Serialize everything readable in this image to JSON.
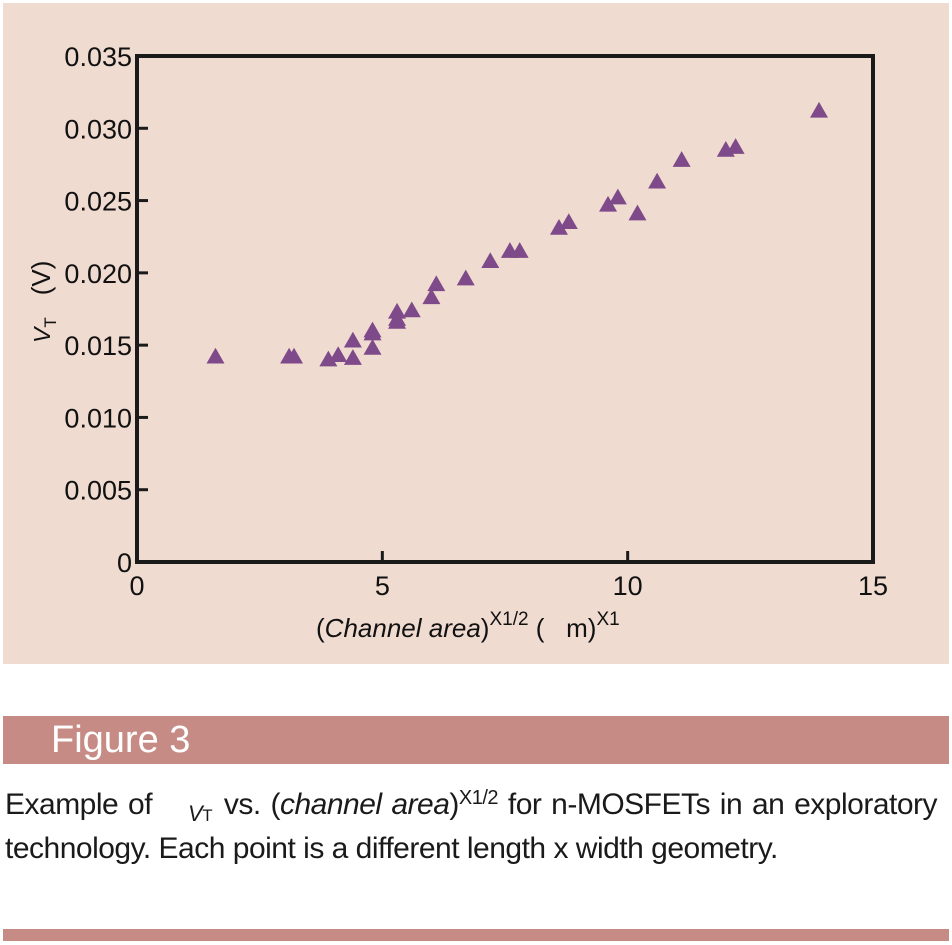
{
  "colors": {
    "panel_bg": "#f0dbd1",
    "figure_bar": "#c78b86",
    "marker": "#7e4a8a",
    "axis": "#1a1a1a"
  },
  "chart_data": {
    "type": "scatter",
    "marker": "triangle-up",
    "xlim": [
      0,
      15
    ],
    "ylim": [
      0,
      0.035
    ],
    "x_ticks": [
      "0",
      "5",
      "10",
      "15"
    ],
    "y_ticks": [
      "0",
      "0.005",
      "0.010",
      "0.015",
      "0.020",
      "0.025",
      "0.030",
      "0.035"
    ],
    "xlabel": {
      "open": "(",
      "italic": "Channel area",
      "close": ")",
      "exp1": "X1/2",
      "unit": " (   m)",
      "exp2": "X1"
    },
    "ylabel": {
      "symbol": "V",
      "sub": "T",
      "unit": "(V)"
    },
    "points": [
      {
        "x": 1.6,
        "y": 0.0142
      },
      {
        "x": 3.1,
        "y": 0.0142
      },
      {
        "x": 3.2,
        "y": 0.0142
      },
      {
        "x": 3.9,
        "y": 0.014
      },
      {
        "x": 4.1,
        "y": 0.0143
      },
      {
        "x": 4.4,
        "y": 0.0141
      },
      {
        "x": 4.4,
        "y": 0.0153
      },
      {
        "x": 4.8,
        "y": 0.0148
      },
      {
        "x": 4.8,
        "y": 0.0158
      },
      {
        "x": 4.8,
        "y": 0.016
      },
      {
        "x": 5.3,
        "y": 0.0166
      },
      {
        "x": 5.3,
        "y": 0.0168
      },
      {
        "x": 5.3,
        "y": 0.0173
      },
      {
        "x": 5.6,
        "y": 0.0174
      },
      {
        "x": 6.0,
        "y": 0.0183
      },
      {
        "x": 6.1,
        "y": 0.0192
      },
      {
        "x": 6.7,
        "y": 0.0196
      },
      {
        "x": 7.2,
        "y": 0.0208
      },
      {
        "x": 7.6,
        "y": 0.0215
      },
      {
        "x": 7.8,
        "y": 0.0215
      },
      {
        "x": 8.6,
        "y": 0.0231
      },
      {
        "x": 8.8,
        "y": 0.0235
      },
      {
        "x": 9.6,
        "y": 0.0247
      },
      {
        "x": 9.8,
        "y": 0.0252
      },
      {
        "x": 10.2,
        "y": 0.0241
      },
      {
        "x": 10.6,
        "y": 0.0263
      },
      {
        "x": 11.1,
        "y": 0.0278
      },
      {
        "x": 12.0,
        "y": 0.0285
      },
      {
        "x": 12.2,
        "y": 0.0287
      },
      {
        "x": 13.9,
        "y": 0.0312
      }
    ]
  },
  "figure": {
    "label": "Figure 3"
  },
  "caption": {
    "part1": "Example of",
    "sym_v": "V",
    "sym_t": "T",
    "part2": " vs. (",
    "italic": "channel area",
    "part3": ")",
    "sup": "X1/2",
    "part4": " for n-MOSFETs in an exploratory technology. Each point is a different length x  width geometry."
  }
}
